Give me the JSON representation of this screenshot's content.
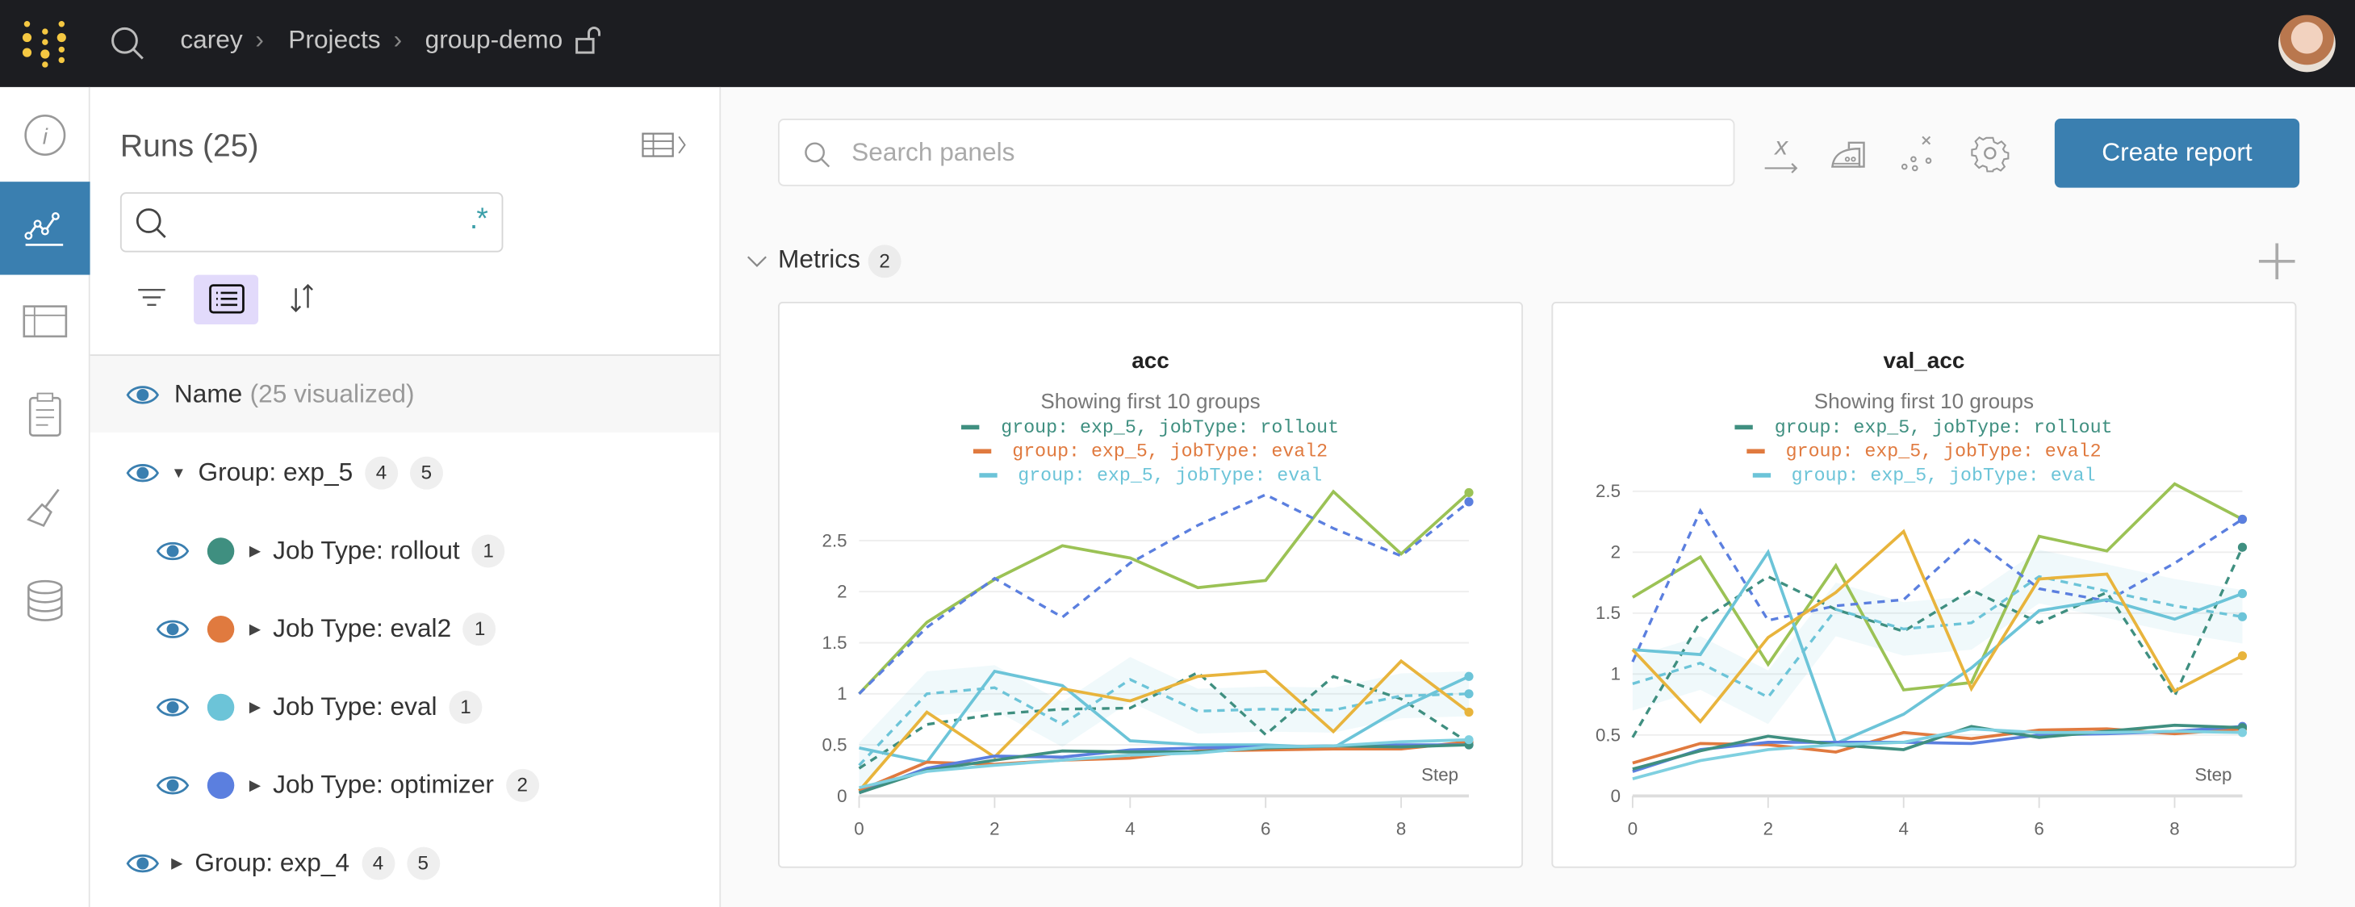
{
  "topbar": {
    "breadcrumb": [
      "carey",
      "Projects",
      "group-demo"
    ],
    "logo": "wandb-logo",
    "lock_icon": "unlock-icon"
  },
  "rail": {
    "items": [
      {
        "icon": "info-icon"
      },
      {
        "icon": "chart-icon",
        "active": true
      },
      {
        "icon": "table-icon"
      },
      {
        "icon": "clipboard-icon"
      },
      {
        "icon": "broom-icon"
      },
      {
        "icon": "database-icon"
      }
    ]
  },
  "runs": {
    "title": "Runs (25)",
    "search": {
      "value": "",
      "placeholder": "",
      "regex_label": ".*"
    },
    "name_header": {
      "label": "Name",
      "sub": "(25 visualized)"
    },
    "rows": [
      {
        "label": "Group: exp_5",
        "badges": [
          "4",
          "5"
        ],
        "expanded": true
      },
      {
        "label": "Job Type: rollout",
        "badges": [
          "1"
        ],
        "color": "#3f8f80"
      },
      {
        "label": "Job Type: eval2",
        "badges": [
          "1"
        ],
        "color": "#e07a3f"
      },
      {
        "label": "Job Type: eval",
        "badges": [
          "1"
        ],
        "color": "#6cc4d8"
      },
      {
        "label": "Job Type: optimizer",
        "badges": [
          "2"
        ],
        "color": "#5b7fdf"
      },
      {
        "label": "Group: exp_4",
        "badges": [
          "4",
          "5"
        ],
        "expanded": false
      }
    ]
  },
  "main": {
    "search_placeholder": "Search panels",
    "create_report": "Create report",
    "section": {
      "title": "Metrics",
      "count": "2"
    }
  },
  "colors": {
    "accent": "#3a7fb0",
    "topbar": "#1c1d21"
  },
  "chart_data": [
    {
      "type": "line",
      "title": "acc",
      "subtitle": "Showing first 10 groups",
      "xlabel": "Step",
      "xlim": [
        0,
        9
      ],
      "ylim": [
        0,
        3
      ],
      "xticks": [
        "0",
        "2",
        "4",
        "6",
        "8"
      ],
      "yticks": [
        "0",
        "0.5",
        "1",
        "1.5",
        "2",
        "2.5"
      ],
      "legend": [
        {
          "label": "group: exp_5, jobType: rollout",
          "color": "#3f8f80"
        },
        {
          "label": "group: exp_5, jobType: eval2",
          "color": "#e07a3f"
        },
        {
          "label": "group: exp_5, jobType: eval",
          "color": "#6cc4d8"
        }
      ],
      "x": [
        0,
        1,
        2,
        3,
        4,
        5,
        6,
        7,
        8,
        9
      ],
      "series": [
        {
          "color": "#9bc255",
          "dash": false,
          "values": [
            1.0,
            1.7,
            2.12,
            2.45,
            2.33,
            2.04,
            2.11,
            2.98,
            2.37,
            2.97
          ]
        },
        {
          "color": "#5b7fdf",
          "dash": true,
          "values": [
            1.0,
            1.65,
            2.13,
            1.75,
            2.28,
            2.65,
            2.95,
            2.62,
            2.35,
            2.88
          ]
        },
        {
          "color": "#3f8f80",
          "dash": true,
          "values": [
            0.27,
            0.7,
            0.8,
            0.85,
            0.86,
            1.21,
            0.6,
            1.17,
            0.95,
            0.52
          ]
        },
        {
          "color": "#6cc4d8",
          "dash": true,
          "values": [
            0.3,
            1.0,
            1.06,
            0.7,
            1.14,
            0.83,
            0.85,
            0.84,
            0.98,
            1.0
          ]
        },
        {
          "color": "#6cc4d8",
          "dash": false,
          "values": [
            0.47,
            0.33,
            1.22,
            1.08,
            0.54,
            0.5,
            0.5,
            0.47,
            0.86,
            1.17
          ]
        },
        {
          "color": "#e8b43c",
          "dash": false,
          "values": [
            0.05,
            0.82,
            0.38,
            1.05,
            0.93,
            1.17,
            1.22,
            0.63,
            1.32,
            0.82
          ]
        },
        {
          "name": "group: exp_5, jobType: eval2",
          "color": "#e07a3f",
          "dash": false,
          "values": [
            0.05,
            0.33,
            0.31,
            0.35,
            0.37,
            0.44,
            0.45,
            0.46,
            0.46,
            0.53
          ]
        },
        {
          "color": "#5b7fdf",
          "dash": false,
          "values": [
            0.03,
            0.27,
            0.39,
            0.38,
            0.45,
            0.47,
            0.48,
            0.49,
            0.5,
            0.5
          ]
        },
        {
          "name": "group: exp_5, jobType: rollout",
          "color": "#3f8f80",
          "dash": false,
          "values": [
            0.03,
            0.25,
            0.35,
            0.44,
            0.43,
            0.43,
            0.47,
            0.49,
            0.48,
            0.5
          ]
        },
        {
          "name": "group: exp_5, jobType: eval",
          "color": "#7fd0e0",
          "dash": false,
          "values": [
            0.08,
            0.24,
            0.3,
            0.35,
            0.4,
            0.42,
            0.48,
            0.49,
            0.53,
            0.55
          ]
        }
      ]
    },
    {
      "type": "line",
      "title": "val_acc",
      "subtitle": "Showing first 10 groups",
      "xlabel": "Step",
      "xlim": [
        0,
        9
      ],
      "ylim": [
        0,
        2.6
      ],
      "xticks": [
        "0",
        "2",
        "4",
        "6",
        "8"
      ],
      "yticks": [
        "0",
        "0.5",
        "1",
        "1.5",
        "2",
        "2.5"
      ],
      "legend": [
        {
          "label": "group: exp_5, jobType: rollout",
          "color": "#3f8f80"
        },
        {
          "label": "group: exp_5, jobType: eval2",
          "color": "#e07a3f"
        },
        {
          "label": "group: exp_5, jobType: eval",
          "color": "#6cc4d8"
        }
      ],
      "x": [
        0,
        1,
        2,
        3,
        4,
        5,
        6,
        7,
        8,
        9
      ],
      "series": [
        {
          "color": "#9bc255",
          "dash": false,
          "values": [
            1.63,
            1.96,
            1.08,
            1.89,
            0.87,
            0.93,
            2.13,
            2.01,
            2.56,
            2.27
          ]
        },
        {
          "color": "#5b7fdf",
          "dash": true,
          "values": [
            1.1,
            2.34,
            1.44,
            1.56,
            1.61,
            2.12,
            1.7,
            1.6,
            1.91,
            2.27
          ]
        },
        {
          "color": "#3f8f80",
          "dash": true,
          "values": [
            0.48,
            1.43,
            1.8,
            1.53,
            1.35,
            1.69,
            1.42,
            1.67,
            0.82,
            2.04
          ]
        },
        {
          "color": "#6cc4d8",
          "dash": true,
          "values": [
            0.92,
            1.09,
            0.81,
            1.53,
            1.37,
            1.42,
            1.8,
            1.68,
            1.56,
            1.47
          ]
        },
        {
          "color": "#6cc4d8",
          "dash": false,
          "values": [
            1.2,
            1.16,
            2.0,
            0.43,
            0.67,
            1.05,
            1.52,
            1.61,
            1.45,
            1.66
          ]
        },
        {
          "color": "#e8b43c",
          "dash": false,
          "values": [
            1.2,
            0.61,
            1.3,
            1.67,
            2.17,
            0.88,
            1.78,
            1.82,
            0.86,
            1.15
          ]
        },
        {
          "name": "group: exp_5, jobType: eval2",
          "color": "#e07a3f",
          "dash": false,
          "values": [
            0.27,
            0.43,
            0.42,
            0.36,
            0.52,
            0.47,
            0.54,
            0.55,
            0.51,
            0.55
          ]
        },
        {
          "color": "#5b7fdf",
          "dash": false,
          "values": [
            0.2,
            0.38,
            0.44,
            0.44,
            0.44,
            0.43,
            0.5,
            0.51,
            0.53,
            0.57
          ]
        },
        {
          "name": "group: exp_5, jobType: rollout",
          "color": "#3f8f80",
          "dash": false,
          "values": [
            0.22,
            0.37,
            0.49,
            0.42,
            0.38,
            0.57,
            0.48,
            0.53,
            0.58,
            0.56
          ]
        },
        {
          "name": "group: exp_5, jobType: eval",
          "color": "#7fd0e0",
          "dash": false,
          "values": [
            0.14,
            0.29,
            0.38,
            0.42,
            0.44,
            0.55,
            0.52,
            0.52,
            0.53,
            0.52
          ]
        }
      ]
    }
  ]
}
